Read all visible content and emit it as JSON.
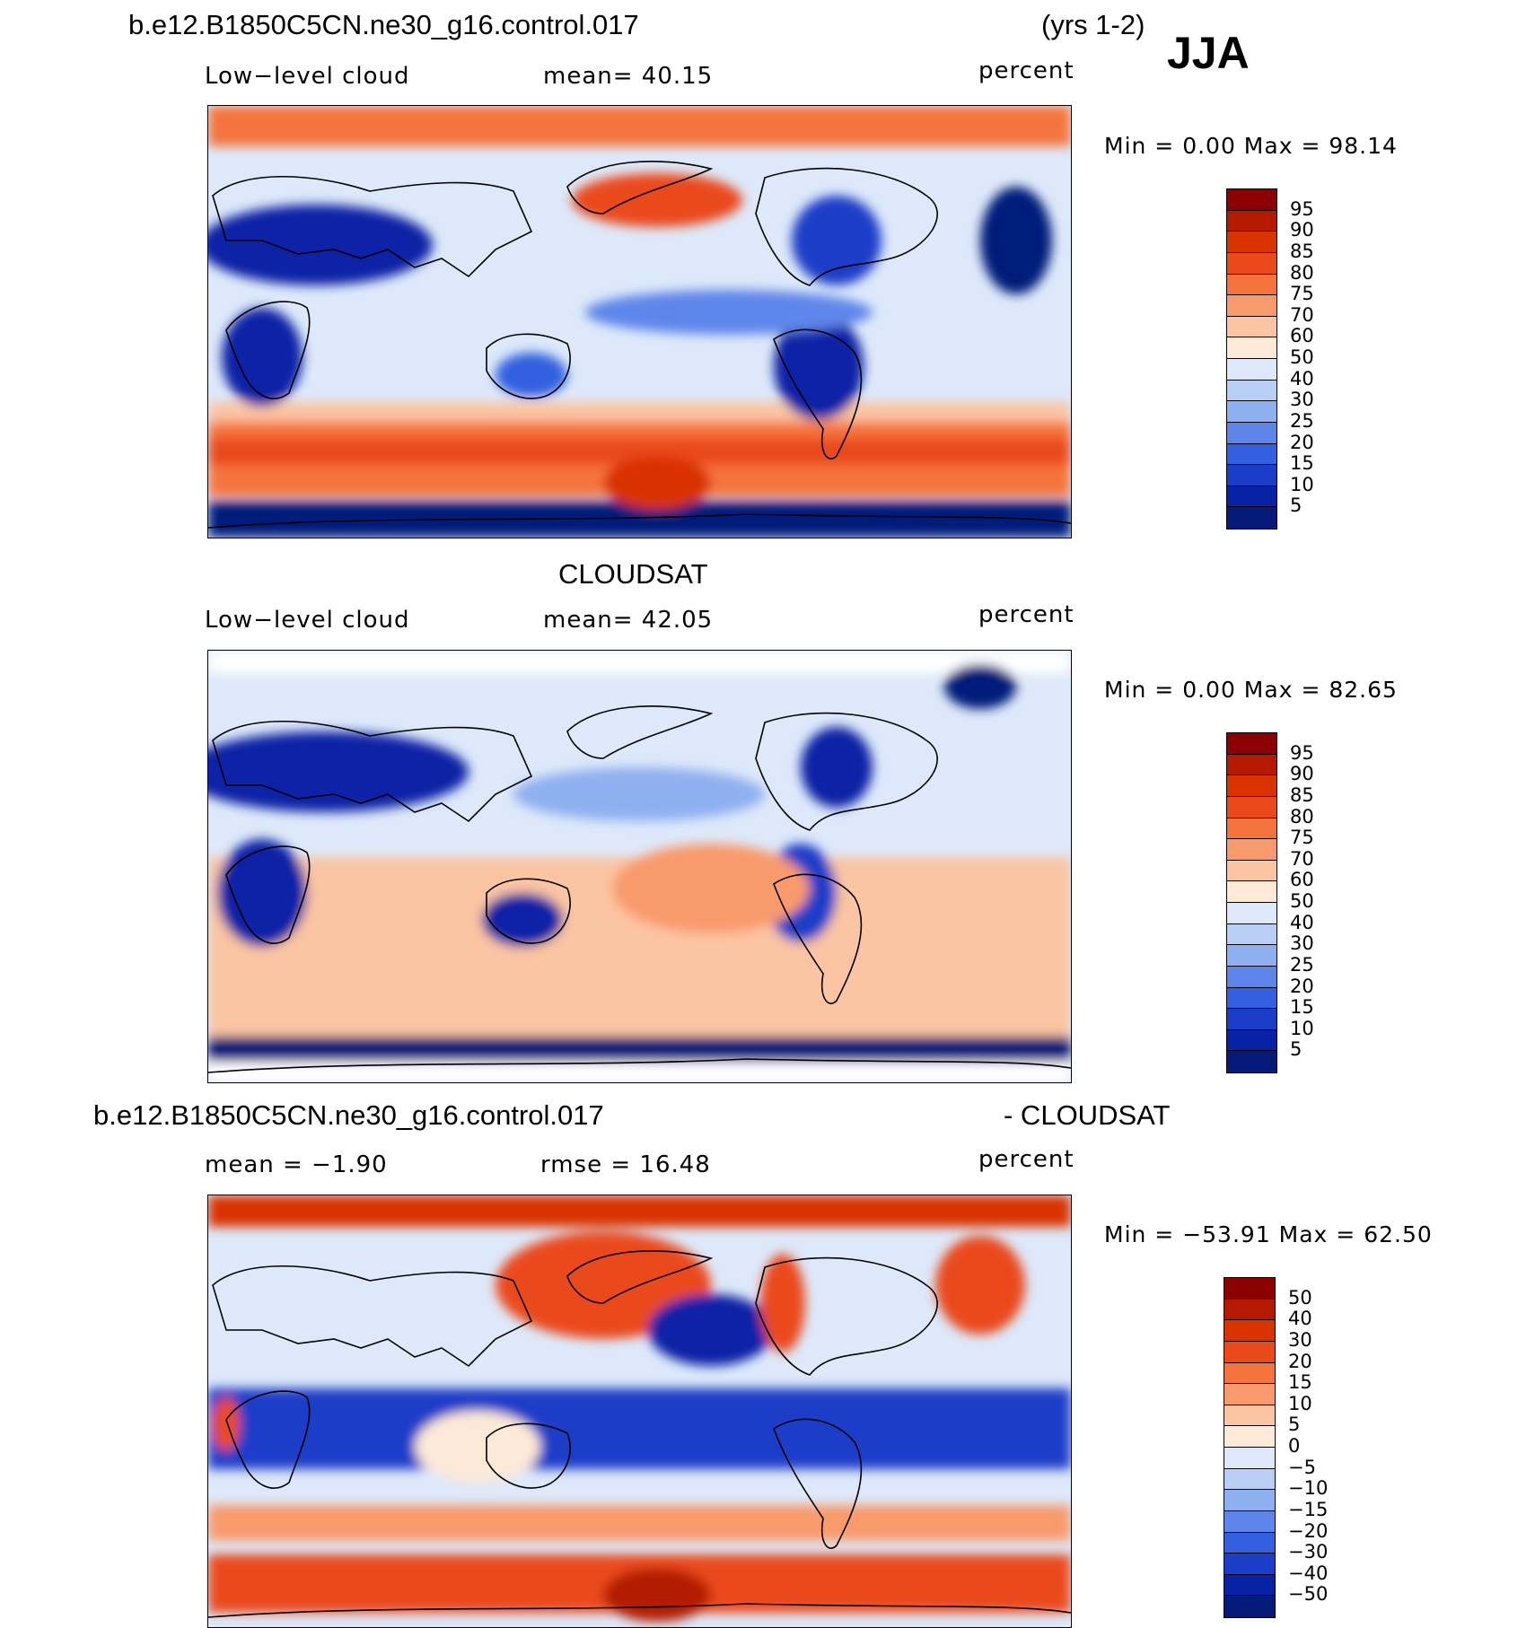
{
  "header": {
    "case_title": "b.e12.B1850C5CN.ne30_g16.control.017",
    "years": "(yrs 1-2)",
    "season": "JJA"
  },
  "panels": [
    {
      "id": "model",
      "subtitle": "",
      "left_label": "Low−level cloud",
      "center_label": "mean=  40.15",
      "right_label": "percent",
      "minmax": "Min =    0.00  Max =   98.14",
      "colorbar": {
        "labels": [
          "95",
          "90",
          "85",
          "80",
          "75",
          "70",
          "60",
          "50",
          "40",
          "30",
          "25",
          "20",
          "15",
          "10",
          "5"
        ],
        "colors": [
          "#8b0000",
          "#b31a00",
          "#d93300",
          "#ea4a1a",
          "#f5733d",
          "#f99a6c",
          "#fbc4a3",
          "#fde9d7",
          "#dde9fa",
          "#b8cef5",
          "#8fb0f0",
          "#5e86ea",
          "#3360e0",
          "#1a3ec8",
          "#0822a6",
          "#061a7a"
        ]
      },
      "regions": []
    },
    {
      "id": "obs",
      "subtitle": "CLOUDSAT",
      "left_label": "Low−level cloud",
      "center_label": "mean=  42.05",
      "right_label": "percent",
      "minmax": "Min =    0.00  Max =   82.65",
      "colorbar": {
        "labels": [
          "95",
          "90",
          "85",
          "80",
          "75",
          "70",
          "60",
          "50",
          "40",
          "30",
          "25",
          "20",
          "15",
          "10",
          "5"
        ],
        "colors": [
          "#8b0000",
          "#b31a00",
          "#d93300",
          "#ea4a1a",
          "#f5733d",
          "#f99a6c",
          "#fbc4a3",
          "#fde9d7",
          "#dde9fa",
          "#b8cef5",
          "#8fb0f0",
          "#5e86ea",
          "#3360e0",
          "#1a3ec8",
          "#0822a6",
          "#061a7a"
        ]
      }
    },
    {
      "id": "diff",
      "subtitle_left": "b.e12.B1850C5CN.ne30_g16.control.017",
      "subtitle_right": "- CLOUDSAT",
      "left_label": "mean =  −1.90",
      "center_label": "rmse =  16.48",
      "right_label": "percent",
      "minmax": "Min = −53.91  Max =   62.50",
      "colorbar": {
        "labels": [
          "50",
          "40",
          "30",
          "20",
          "15",
          "10",
          "5",
          "0",
          "−5",
          "−10",
          "−15",
          "−20",
          "−30",
          "−40",
          "−50"
        ],
        "colors": [
          "#8b0000",
          "#b31a00",
          "#d93300",
          "#ea4a1a",
          "#f5733d",
          "#f99a6c",
          "#fbc4a3",
          "#fde9d7",
          "#dde9fa",
          "#b8cef5",
          "#8fb0f0",
          "#5e86ea",
          "#3360e0",
          "#1a3ec8",
          "#0822a6",
          "#061a7a"
        ]
      }
    }
  ]
}
